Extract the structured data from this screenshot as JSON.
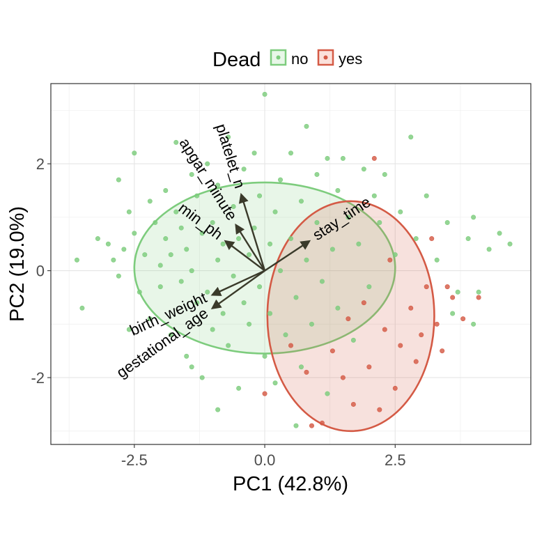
{
  "chart_data": {
    "type": "scatter",
    "xlabel": "PC1 (42.8%)",
    "ylabel": "PC2 (19.0%)",
    "xlim": [
      -4.1,
      5.1
    ],
    "ylim": [
      -3.25,
      3.5
    ],
    "xticks": [
      -2.5,
      0.0,
      2.5
    ],
    "xtick_labels": [
      "-2.5",
      "0.0",
      "2.5"
    ],
    "yticks": [
      -2,
      0,
      2
    ],
    "ytick_labels": [
      "-2",
      "0",
      "2"
    ],
    "grid": true,
    "legend": {
      "title": "Dead",
      "placement": "top",
      "entries": [
        "no",
        "yes"
      ]
    },
    "colors": {
      "no": "#7dcc7d",
      "yes": "#d45a45",
      "arrow": "#3a3a2a"
    },
    "series": [
      {
        "name": "no",
        "points": [
          [
            -3.6,
            0.2
          ],
          [
            -3.5,
            -0.7
          ],
          [
            -3.2,
            0.6
          ],
          [
            -3.0,
            0.5
          ],
          [
            -2.9,
            0.2
          ],
          [
            -2.8,
            1.7
          ],
          [
            -2.8,
            -0.1
          ],
          [
            -2.7,
            0.4
          ],
          [
            -2.6,
            1.1
          ],
          [
            -2.5,
            2.2
          ],
          [
            -2.5,
            0.7
          ],
          [
            -2.4,
            -0.4
          ],
          [
            -2.3,
            0.3
          ],
          [
            -2.2,
            1.3
          ],
          [
            -2.2,
            -0.9
          ],
          [
            -2.1,
            0.9
          ],
          [
            -2.0,
            0.1
          ],
          [
            -2.0,
            -0.3
          ],
          [
            -1.9,
            1.5
          ],
          [
            -1.9,
            0.6
          ],
          [
            -1.8,
            -1.2
          ],
          [
            -1.8,
            0.3
          ],
          [
            -1.7,
            2.4
          ],
          [
            -1.7,
            1.1
          ],
          [
            -1.6,
            -0.2
          ],
          [
            -1.6,
            0.8
          ],
          [
            -1.5,
            0.4
          ],
          [
            -1.5,
            -1.6
          ],
          [
            -1.4,
            1.8
          ],
          [
            -1.4,
            0.0
          ],
          [
            -1.3,
            -0.6
          ],
          [
            -1.3,
            1.4
          ],
          [
            -1.2,
            0.7
          ],
          [
            -1.2,
            -2.0
          ],
          [
            -1.1,
            2.0
          ],
          [
            -1.1,
            -0.4
          ],
          [
            -1.0,
            0.9
          ],
          [
            -1.0,
            -1.1
          ],
          [
            -0.9,
            0.2
          ],
          [
            -0.9,
            1.6
          ],
          [
            -0.8,
            -0.8
          ],
          [
            -0.8,
            0.5
          ],
          [
            -0.7,
            2.5
          ],
          [
            -0.7,
            -1.4
          ],
          [
            -0.6,
            1.2
          ],
          [
            -0.6,
            -0.1
          ],
          [
            -0.5,
            0.6
          ],
          [
            -0.5,
            -2.2
          ],
          [
            -0.4,
            1.9
          ],
          [
            -0.4,
            -0.6
          ],
          [
            -0.3,
            0.3
          ],
          [
            -0.3,
            -1.0
          ],
          [
            -0.2,
            2.2
          ],
          [
            -0.2,
            0.8
          ],
          [
            -0.1,
            -0.3
          ],
          [
            -0.1,
            1.4
          ],
          [
            0.0,
            3.3
          ],
          [
            0.0,
            -1.6
          ],
          [
            0.1,
            0.5
          ],
          [
            0.1,
            -0.8
          ],
          [
            0.2,
            1.1
          ],
          [
            0.2,
            -2.1
          ],
          [
            0.3,
            0.0
          ],
          [
            0.3,
            1.7
          ],
          [
            0.4,
            -1.2
          ],
          [
            0.5,
            0.6
          ],
          [
            0.5,
            2.2
          ],
          [
            0.6,
            -0.5
          ],
          [
            0.7,
            1.3
          ],
          [
            0.7,
            -1.8
          ],
          [
            0.8,
            2.7
          ],
          [
            0.8,
            0.2
          ],
          [
            0.9,
            -1.0
          ],
          [
            1.0,
            1.8
          ],
          [
            1.0,
            0.9
          ],
          [
            1.1,
            -0.2
          ],
          [
            1.2,
            2.1
          ],
          [
            1.2,
            -2.3
          ],
          [
            1.3,
            0.4
          ],
          [
            1.4,
            1.5
          ],
          [
            1.4,
            -0.7
          ],
          [
            1.5,
            2.1
          ],
          [
            1.6,
            1.0
          ],
          [
            1.7,
            -1.3
          ],
          [
            1.8,
            0.5
          ],
          [
            1.9,
            1.9
          ],
          [
            2.0,
            -0.3
          ],
          [
            2.1,
            1.4
          ],
          [
            2.2,
            0.9
          ],
          [
            2.3,
            1.8
          ],
          [
            2.5,
            0.3
          ],
          [
            2.6,
            1.1
          ],
          [
            2.8,
            2.5
          ],
          [
            2.9,
            0.6
          ],
          [
            3.1,
            1.4
          ],
          [
            3.3,
            0.2
          ],
          [
            3.5,
            0.9
          ],
          [
            3.7,
            -0.4
          ],
          [
            3.9,
            0.6
          ],
          [
            4.0,
            1.0
          ],
          [
            4.1,
            -0.4
          ],
          [
            4.3,
            0.4
          ],
          [
            4.5,
            0.7
          ],
          [
            4.7,
            0.5
          ],
          [
            -2.6,
            -1.1
          ],
          [
            -1.4,
            -1.8
          ],
          [
            -0.9,
            -2.6
          ],
          [
            0.6,
            -2.9
          ],
          [
            3.6,
            -0.8
          ],
          [
            4.0,
            -1.0
          ]
        ]
      },
      {
        "name": "yes",
        "points": [
          [
            0.9,
            -2.9
          ],
          [
            1.1,
            -2.85
          ],
          [
            1.5,
            -2.0
          ],
          [
            2.0,
            -1.8
          ],
          [
            2.3,
            -1.1
          ],
          [
            2.6,
            -1.4
          ],
          [
            2.8,
            -0.7
          ],
          [
            3.0,
            -1.2
          ],
          [
            3.1,
            -0.3
          ],
          [
            3.2,
            0.6
          ],
          [
            3.3,
            -1.0
          ],
          [
            3.5,
            -0.3
          ],
          [
            3.6,
            -0.5
          ],
          [
            3.8,
            -0.9
          ],
          [
            4.1,
            -0.5
          ],
          [
            1.7,
            -2.5
          ],
          [
            0.8,
            -1.9
          ],
          [
            0.0,
            -2.3
          ],
          [
            2.1,
            2.1
          ],
          [
            2.5,
            -2.2
          ],
          [
            1.9,
            -0.6
          ],
          [
            2.4,
            0.2
          ],
          [
            1.3,
            -1.5
          ],
          [
            2.9,
            -1.7
          ],
          [
            3.4,
            -1.5
          ],
          [
            1.6,
            -0.9
          ],
          [
            2.2,
            -2.6
          ],
          [
            0.5,
            -1.4
          ]
        ]
      }
    ],
    "ellipses": [
      {
        "name": "no",
        "cx": 0.0,
        "cy": 0.05,
        "rx": 2.5,
        "ry": 1.6
      },
      {
        "name": "yes",
        "cx": 1.65,
        "cy": -0.85,
        "rx": 1.6,
        "ry": 2.15
      }
    ],
    "loadings": [
      {
        "name": "platelet_n",
        "x": -0.45,
        "y": 1.42
      },
      {
        "name": "apgar_minute",
        "x": -0.55,
        "y": 0.85
      },
      {
        "name": "min_ph",
        "x": -0.75,
        "y": 0.55
      },
      {
        "name": "stay_time",
        "x": 0.85,
        "y": 0.55
      },
      {
        "name": "birth_weight",
        "x": -1.0,
        "y": -0.45
      },
      {
        "name": "gestational_age",
        "x": -1.0,
        "y": -0.7
      }
    ]
  }
}
